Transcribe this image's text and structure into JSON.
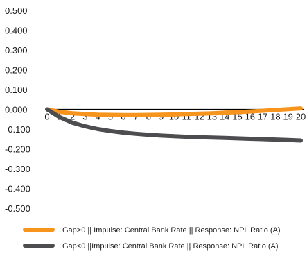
{
  "chart_data": {
    "type": "line",
    "title": "",
    "xlabel": "",
    "ylabel": "",
    "ylim": [
      -0.5,
      0.5
    ],
    "yticks": [
      "0.500",
      "0.400",
      "0.300",
      "0.200",
      "0.100",
      "0.000",
      "-0.100",
      "-0.200",
      "-0.300",
      "-0.400",
      "-0.500"
    ],
    "x": [
      0,
      1,
      2,
      3,
      4,
      5,
      6,
      7,
      8,
      9,
      10,
      11,
      12,
      13,
      14,
      15,
      16,
      17,
      18,
      19,
      20
    ],
    "grid": false,
    "legend_position": "bottom",
    "series": [
      {
        "name": "Gap>0 || Impulse: Central Bank Rate || Response: NPL Ratio (A)",
        "color": "#F7941D",
        "values": [
          0.0,
          -0.013,
          -0.02,
          -0.024,
          -0.027,
          -0.028,
          -0.029,
          -0.029,
          -0.028,
          -0.027,
          -0.026,
          -0.024,
          -0.022,
          -0.02,
          -0.017,
          -0.014,
          -0.011,
          -0.007,
          -0.003,
          0.001,
          0.005
        ]
      },
      {
        "name": "Gap<0 ||Impulse: Central Bank Rate || Response: NPL Ratio (A)",
        "color": "#4D4D4F",
        "values": [
          0.0,
          -0.04,
          -0.068,
          -0.086,
          -0.1,
          -0.11,
          -0.118,
          -0.124,
          -0.129,
          -0.133,
          -0.136,
          -0.139,
          -0.141,
          -0.143,
          -0.145,
          -0.147,
          -0.149,
          -0.151,
          -0.153,
          -0.155,
          -0.158
        ]
      }
    ]
  }
}
